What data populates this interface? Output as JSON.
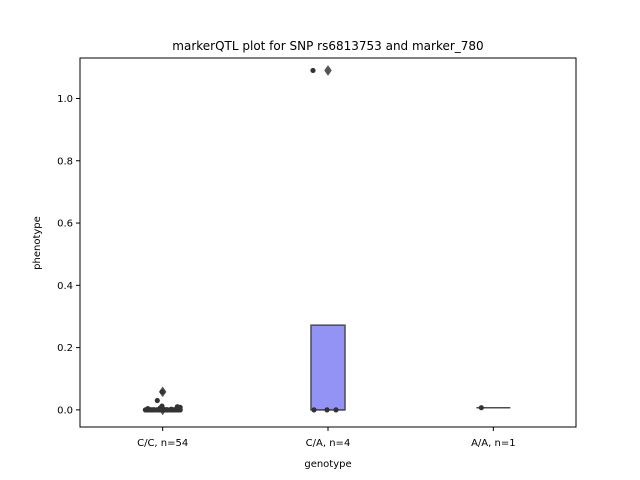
{
  "chart_data": {
    "type": "box",
    "title": "markerQTL plot for SNP rs6813753 and marker_780",
    "xlabel": "genotype",
    "ylabel": "phenotype",
    "categories": [
      "C/C, n=54",
      "C/A, n=4",
      "A/A, n=1"
    ],
    "ylim": [
      -0.055,
      1.13
    ],
    "yticks": [
      0.0,
      0.2,
      0.4,
      0.6,
      0.8,
      1.0
    ],
    "ytick_labels": [
      "0.0",
      "0.2",
      "0.4",
      "0.6",
      "0.8",
      "1.0"
    ],
    "grid": false,
    "legend": "none",
    "colors": {
      "box_fill": "#9393f5",
      "box_edge": "#4d4d4d",
      "strip_points": "#333333",
      "outlier": "#555555"
    },
    "boxes": [
      {
        "category": "C/C, n=54",
        "q1": 0.0,
        "median": 0.0,
        "q3": 0.0,
        "whisker_low": 0.0,
        "whisker_high": 0.0,
        "outliers": [
          0.058,
          0.0
        ]
      },
      {
        "category": "C/A, n=4",
        "q1": 0.0,
        "median": 0.0,
        "q3": 0.272,
        "whisker_low": 0.0,
        "whisker_high": 0.272,
        "outliers": [
          1.09
        ]
      },
      {
        "category": "A/A, n=1",
        "q1": 0.007,
        "median": 0.007,
        "q3": 0.007,
        "whisker_low": 0.007,
        "whisker_high": 0.007,
        "outliers": []
      }
    ],
    "points": [
      {
        "category": "C/C, n=54",
        "values": [
          0,
          0,
          0,
          0,
          0,
          0,
          0,
          0,
          0,
          0,
          0,
          0,
          0,
          0,
          0,
          0,
          0,
          0,
          0,
          0,
          0,
          0,
          0,
          0,
          0,
          0,
          0,
          0,
          0,
          0,
          0,
          0,
          0,
          0,
          0,
          0,
          0,
          0,
          0,
          0,
          0,
          0,
          0,
          0,
          0,
          0,
          0.002,
          0.004,
          0.006,
          0.008,
          0.01,
          0.012,
          0.03,
          0.058
        ]
      },
      {
        "category": "C/A, n=4",
        "values": [
          0.0,
          0.0,
          0.0,
          1.09
        ]
      },
      {
        "category": "A/A, n=1",
        "values": [
          0.007
        ]
      }
    ]
  }
}
